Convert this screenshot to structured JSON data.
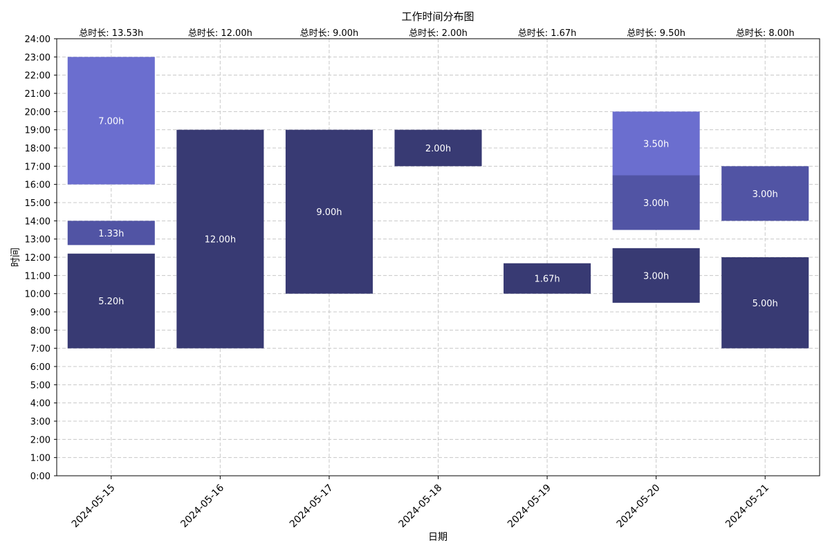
{
  "chart_data": {
    "type": "bar",
    "title": "工作时间分布图",
    "xlabel": "日期",
    "ylabel": "时间",
    "categories": [
      "2024-05-15",
      "2024-05-16",
      "2024-05-17",
      "2024-05-18",
      "2024-05-19",
      "2024-05-20",
      "2024-05-21"
    ],
    "totals": [
      "总时长: 13.53h",
      "总时长: 12.00h",
      "总时长: 9.00h",
      "总时长: 2.00h",
      "总时长: 1.67h",
      "总时长: 9.50h",
      "总时长: 8.00h"
    ],
    "y_ticks": [
      "0:00",
      "1:00",
      "2:00",
      "3:00",
      "4:00",
      "5:00",
      "6:00",
      "7:00",
      "8:00",
      "9:00",
      "10:00",
      "11:00",
      "12:00",
      "13:00",
      "14:00",
      "15:00",
      "16:00",
      "17:00",
      "18:00",
      "19:00",
      "20:00",
      "21:00",
      "22:00",
      "23:00",
      "24:00"
    ],
    "ylim": [
      0,
      24
    ],
    "grid": true,
    "colors": [
      "#383a73",
      "#5154a4",
      "#6b6ecf"
    ],
    "segments": [
      {
        "category": 0,
        "start": 7.0,
        "end": 12.2,
        "label": "5.20h",
        "level": 0
      },
      {
        "category": 0,
        "start": 12.67,
        "end": 14.0,
        "label": "1.33h",
        "level": 1
      },
      {
        "category": 0,
        "start": 16.0,
        "end": 23.0,
        "label": "7.00h",
        "level": 2
      },
      {
        "category": 1,
        "start": 7.0,
        "end": 19.0,
        "label": "12.00h",
        "level": 0
      },
      {
        "category": 2,
        "start": 10.0,
        "end": 19.0,
        "label": "9.00h",
        "level": 0
      },
      {
        "category": 3,
        "start": 17.0,
        "end": 19.0,
        "label": "2.00h",
        "level": 0
      },
      {
        "category": 4,
        "start": 10.0,
        "end": 11.67,
        "label": "1.67h",
        "level": 0
      },
      {
        "category": 5,
        "start": 9.5,
        "end": 12.5,
        "label": "3.00h",
        "level": 0
      },
      {
        "category": 5,
        "start": 13.5,
        "end": 16.5,
        "label": "3.00h",
        "level": 1
      },
      {
        "category": 5,
        "start": 16.5,
        "end": 20.0,
        "label": "3.50h",
        "level": 2
      },
      {
        "category": 6,
        "start": 7.0,
        "end": 12.0,
        "label": "5.00h",
        "level": 0
      },
      {
        "category": 6,
        "start": 14.0,
        "end": 17.0,
        "label": "3.00h",
        "level": 1
      }
    ]
  }
}
